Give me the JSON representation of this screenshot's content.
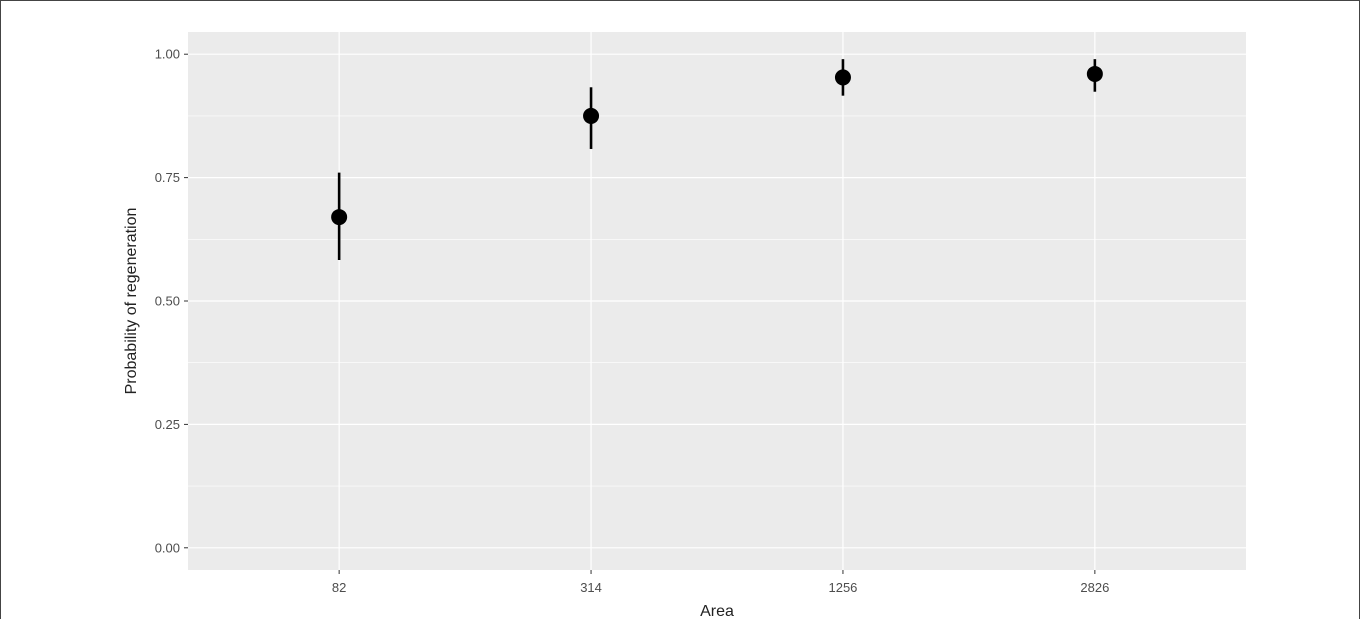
{
  "chart_data": {
    "type": "scatter",
    "xlabel": "Area",
    "ylabel": "Probability of regeneration",
    "categories": [
      "82",
      "314",
      "1256",
      "2826"
    ],
    "points": [
      {
        "x": "82",
        "y": 0.67,
        "lower": 0.583,
        "upper": 0.76
      },
      {
        "x": "314",
        "y": 0.875,
        "lower": 0.808,
        "upper": 0.933
      },
      {
        "x": "1256",
        "y": 0.953,
        "lower": 0.916,
        "upper": 0.99
      },
      {
        "x": "2826",
        "y": 0.96,
        "lower": 0.924,
        "upper": 0.99
      }
    ],
    "y_ticks": [
      "0.00",
      "0.25",
      "0.50",
      "0.75",
      "1.00"
    ],
    "ylim": [
      -0.045,
      1.045
    ],
    "grid": true,
    "legend": "none",
    "colors": {
      "panel": "#ebebeb",
      "grid": "#ffffff",
      "point": "#000000"
    }
  }
}
